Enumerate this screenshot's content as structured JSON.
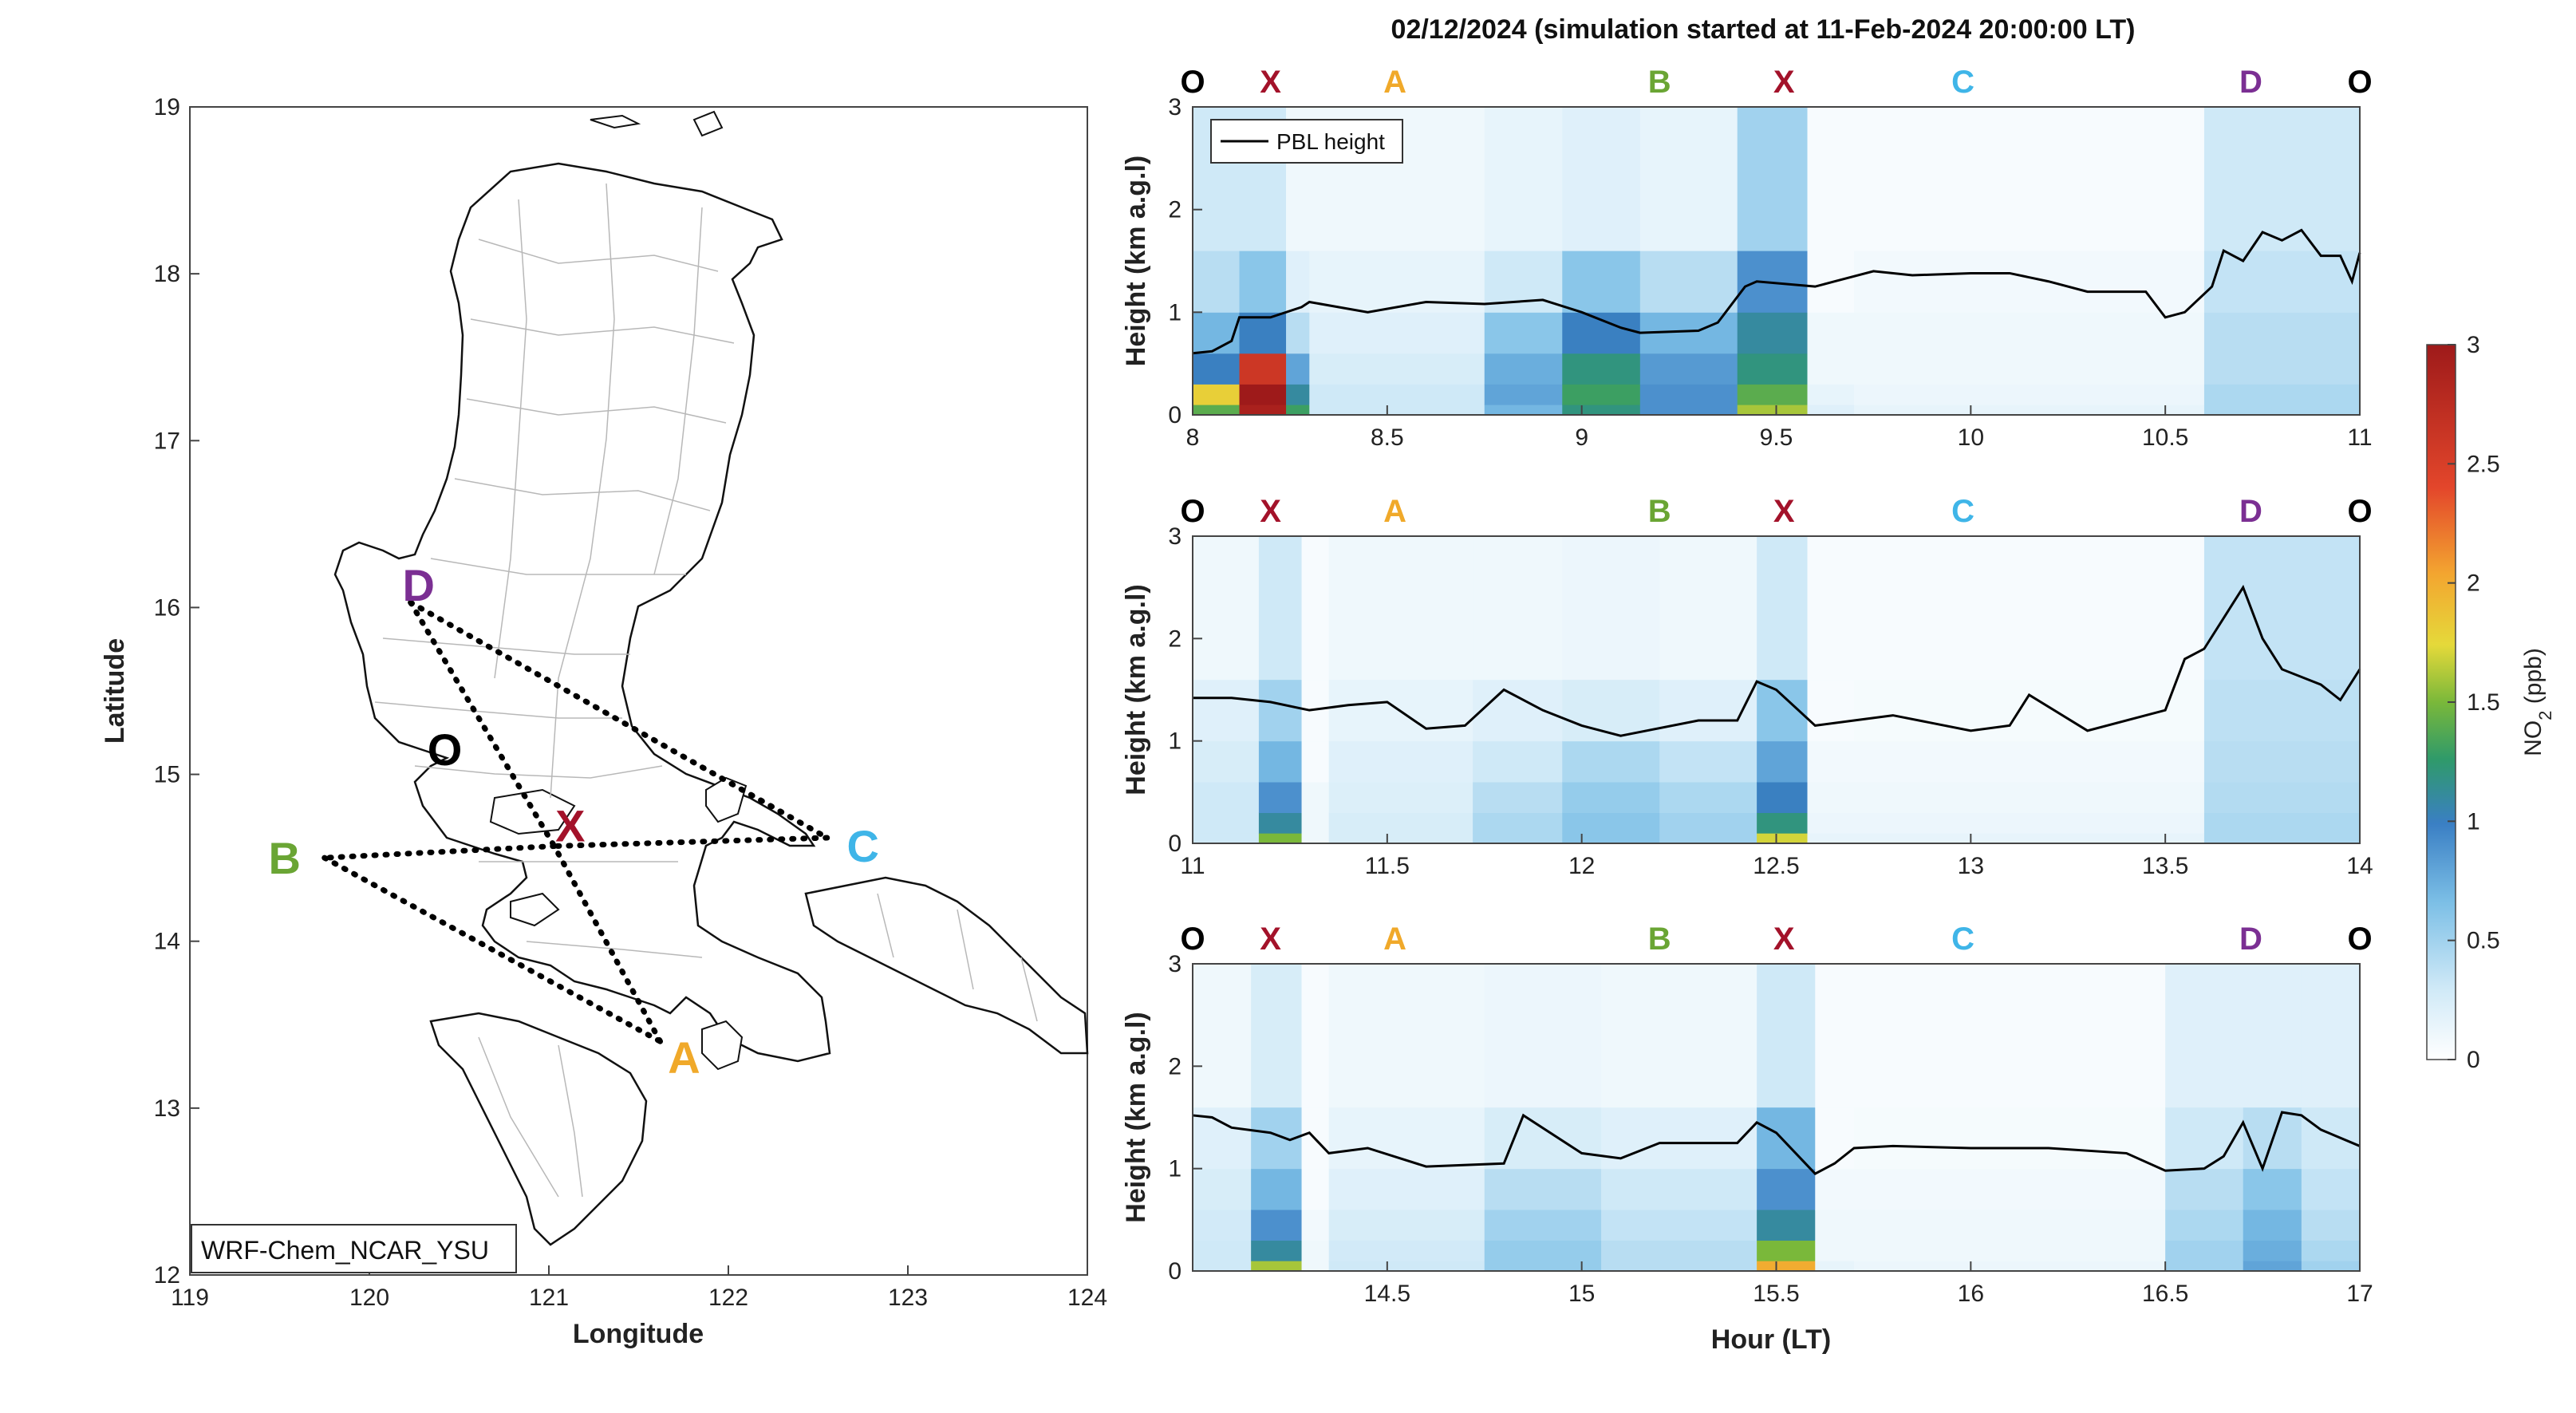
{
  "figure_title": "02/12/2024 (simulation started at 11-Feb-2024 20:00:00 LT)",
  "colors": {
    "O": "#000000",
    "X": "#a3122a",
    "A": "#f0a92a",
    "B": "#6aa534",
    "C": "#3fb5e8",
    "D": "#7b2f93"
  },
  "chart_data": [
    {
      "type": "map",
      "panel": "map",
      "xlabel": "Longitude",
      "ylabel": "Latitude",
      "xlim": [
        119,
        124
      ],
      "ylim": [
        12,
        19
      ],
      "xticks": [
        119,
        120,
        121,
        122,
        123,
        124
      ],
      "yticks": [
        12,
        13,
        14,
        15,
        16,
        17,
        18,
        19
      ],
      "model_label": "WRF-Chem_NCAR_YSU",
      "points": [
        {
          "name": "O",
          "lon": 120.42,
          "lat": 15.15
        },
        {
          "name": "X",
          "lon": 121.03,
          "lat": 14.57
        },
        {
          "name": "A",
          "lon": 121.62,
          "lat": 13.4
        },
        {
          "name": "B",
          "lon": 119.75,
          "lat": 14.5
        },
        {
          "name": "C",
          "lon": 122.55,
          "lat": 14.62
        },
        {
          "name": "D",
          "lon": 120.23,
          "lat": 16.03
        }
      ],
      "route_segments": [
        [
          "D",
          "X"
        ],
        [
          "D",
          "C"
        ],
        [
          "C",
          "X"
        ],
        [
          "X",
          "B"
        ],
        [
          "B",
          "A"
        ],
        [
          "A",
          "X"
        ]
      ]
    },
    {
      "type": "heatmap",
      "panel": "curtain-1",
      "xlim": [
        8,
        11
      ],
      "xticks": [
        "8",
        "8.5",
        "9",
        "9.5",
        "10",
        "10.5",
        "11"
      ],
      "ylim": [
        0,
        3
      ],
      "yticks": [
        "0",
        "1",
        "2",
        "3"
      ],
      "ylabel": "Height (km a.g.l)",
      "legend": "PBL height",
      "route_labels": [
        {
          "label": "O",
          "x": 8.0
        },
        {
          "label": "X",
          "x": 8.2
        },
        {
          "label": "A",
          "x": 8.52
        },
        {
          "label": "B",
          "x": 9.2
        },
        {
          "label": "X",
          "x": 9.52
        },
        {
          "label": "C",
          "x": 9.98
        },
        {
          "label": "D",
          "x": 10.72
        },
        {
          "label": "O",
          "x": 11.0
        }
      ],
      "pbl_height": {
        "x": [
          8.0,
          8.05,
          8.1,
          8.12,
          8.2,
          8.28,
          8.3,
          8.45,
          8.6,
          8.75,
          8.9,
          9.0,
          9.1,
          9.15,
          9.3,
          9.35,
          9.42,
          9.45,
          9.6,
          9.65,
          9.75,
          9.85,
          10.0,
          10.1,
          10.2,
          10.3,
          10.45,
          10.5,
          10.55,
          10.62,
          10.65,
          10.7,
          10.75,
          10.8,
          10.85,
          10.9,
          10.95,
          10.98,
          11.0
        ],
        "y": [
          0.6,
          0.62,
          0.72,
          0.95,
          0.95,
          1.05,
          1.1,
          1.0,
          1.1,
          1.08,
          1.12,
          1.0,
          0.85,
          0.8,
          0.82,
          0.9,
          1.25,
          1.3,
          1.25,
          1.3,
          1.4,
          1.36,
          1.38,
          1.38,
          1.3,
          1.2,
          1.2,
          0.95,
          1.0,
          1.25,
          1.6,
          1.5,
          1.78,
          1.7,
          1.8,
          1.55,
          1.55,
          1.3,
          1.58
        ]
      },
      "no2_cells": [
        {
          "x": [
            8.0,
            8.12
          ],
          "z": [
            1.4,
            1.8,
            1.0,
            0.7,
            0.4,
            0.3
          ]
        },
        {
          "x": [
            8.12,
            8.24
          ],
          "z": [
            2.9,
            3.0,
            2.6,
            1.0,
            0.6,
            0.3
          ]
        },
        {
          "x": [
            8.24,
            8.3
          ],
          "z": [
            1.3,
            1.1,
            0.8,
            0.4,
            0.2,
            0.1
          ]
        },
        {
          "x": [
            8.3,
            8.75
          ],
          "z": [
            0.3,
            0.3,
            0.25,
            0.2,
            0.15,
            0.1
          ]
        },
        {
          "x": [
            8.75,
            8.95
          ],
          "z": [
            0.7,
            0.8,
            0.75,
            0.6,
            0.3,
            0.15
          ]
        },
        {
          "x": [
            8.95,
            9.15
          ],
          "z": [
            1.2,
            1.3,
            1.2,
            1.0,
            0.6,
            0.2
          ]
        },
        {
          "x": [
            9.15,
            9.4
          ],
          "z": [
            0.9,
            0.9,
            0.85,
            0.7,
            0.4,
            0.15
          ]
        },
        {
          "x": [
            9.4,
            9.58
          ],
          "z": [
            1.6,
            1.4,
            1.2,
            1.1,
            0.9,
            0.5
          ]
        },
        {
          "x": [
            9.58,
            9.7
          ],
          "z": [
            0.2,
            0.15,
            0.1,
            0.1,
            0.05,
            0.05
          ]
        },
        {
          "x": [
            9.7,
            10.6
          ],
          "z": [
            0.15,
            0.12,
            0.1,
            0.1,
            0.08,
            0.05
          ]
        },
        {
          "x": [
            10.6,
            11.0
          ],
          "z": [
            0.45,
            0.45,
            0.4,
            0.4,
            0.35,
            0.3
          ]
        }
      ]
    },
    {
      "type": "heatmap",
      "panel": "curtain-2",
      "xlim": [
        11,
        14
      ],
      "xticks": [
        "11",
        "11.5",
        "12",
        "12.5",
        "13",
        "13.5",
        "14"
      ],
      "ylim": [
        0,
        3
      ],
      "yticks": [
        "0",
        "1",
        "2",
        "3"
      ],
      "ylabel": "Height (km a.g.l)",
      "route_labels": [
        {
          "label": "O",
          "x": 11.0
        },
        {
          "label": "X",
          "x": 11.2
        },
        {
          "label": "A",
          "x": 11.52
        },
        {
          "label": "B",
          "x": 12.2
        },
        {
          "label": "X",
          "x": 12.52
        },
        {
          "label": "C",
          "x": 12.98
        },
        {
          "label": "D",
          "x": 13.72
        },
        {
          "label": "O",
          "x": 14.0
        }
      ],
      "pbl_height": {
        "x": [
          11.0,
          11.1,
          11.2,
          11.3,
          11.4,
          11.5,
          11.6,
          11.7,
          11.8,
          11.9,
          12.0,
          12.1,
          12.3,
          12.4,
          12.45,
          12.5,
          12.6,
          12.7,
          12.8,
          13.0,
          13.1,
          13.15,
          13.3,
          13.5,
          13.55,
          13.6,
          13.65,
          13.7,
          13.75,
          13.8,
          13.9,
          13.95,
          14.0
        ],
        "y": [
          1.42,
          1.42,
          1.38,
          1.3,
          1.35,
          1.38,
          1.12,
          1.15,
          1.5,
          1.3,
          1.15,
          1.05,
          1.2,
          1.2,
          1.58,
          1.5,
          1.15,
          1.2,
          1.25,
          1.1,
          1.15,
          1.45,
          1.1,
          1.3,
          1.8,
          1.9,
          2.2,
          2.5,
          2.0,
          1.7,
          1.55,
          1.4,
          1.7
        ]
      },
      "no2_cells": [
        {
          "x": [
            11.0,
            11.17
          ],
          "z": [
            0.3,
            0.3,
            0.3,
            0.25,
            0.2,
            0.1
          ]
        },
        {
          "x": [
            11.17,
            11.28
          ],
          "z": [
            1.5,
            1.1,
            0.9,
            0.7,
            0.5,
            0.3
          ]
        },
        {
          "x": [
            11.28,
            11.35
          ],
          "z": [
            0.1,
            0.1,
            0.1,
            0.05,
            0.05,
            0.05
          ]
        },
        {
          "x": [
            11.35,
            11.72
          ],
          "z": [
            0.25,
            0.25,
            0.22,
            0.2,
            0.15,
            0.1
          ]
        },
        {
          "x": [
            11.72,
            11.95
          ],
          "z": [
            0.45,
            0.45,
            0.4,
            0.3,
            0.2,
            0.1
          ]
        },
        {
          "x": [
            11.95,
            12.2
          ],
          "z": [
            0.6,
            0.6,
            0.55,
            0.45,
            0.25,
            0.12
          ]
        },
        {
          "x": [
            12.2,
            12.45
          ],
          "z": [
            0.5,
            0.5,
            0.45,
            0.35,
            0.2,
            0.1
          ]
        },
        {
          "x": [
            12.45,
            12.58
          ],
          "z": [
            1.7,
            1.2,
            1.0,
            0.8,
            0.6,
            0.3
          ]
        },
        {
          "x": [
            12.58,
            12.7
          ],
          "z": [
            0.15,
            0.12,
            0.1,
            0.08,
            0.05,
            0.05
          ]
        },
        {
          "x": [
            12.7,
            13.6
          ],
          "z": [
            0.15,
            0.12,
            0.1,
            0.08,
            0.06,
            0.05
          ]
        },
        {
          "x": [
            13.6,
            14.0
          ],
          "z": [
            0.45,
            0.45,
            0.42,
            0.4,
            0.38,
            0.35
          ]
        }
      ]
    },
    {
      "type": "heatmap",
      "panel": "curtain-3",
      "xlim": [
        14,
        17
      ],
      "xticks": [
        "14.5",
        "15",
        "15.5",
        "16",
        "16.5",
        "17"
      ],
      "ylim": [
        0,
        3
      ],
      "yticks": [
        "0",
        "1",
        "2",
        "3"
      ],
      "ylabel": "Height (km a.g.l)",
      "xlabel": "Hour (LT)",
      "route_labels": [
        {
          "label": "O",
          "x": 14.0
        },
        {
          "label": "X",
          "x": 14.2
        },
        {
          "label": "A",
          "x": 14.52
        },
        {
          "label": "B",
          "x": 15.2
        },
        {
          "label": "X",
          "x": 15.52
        },
        {
          "label": "C",
          "x": 15.98
        },
        {
          "label": "D",
          "x": 16.72
        },
        {
          "label": "O",
          "x": 17.0
        }
      ],
      "pbl_height": {
        "x": [
          14.0,
          14.05,
          14.1,
          14.2,
          14.25,
          14.3,
          14.35,
          14.45,
          14.6,
          14.8,
          14.85,
          15.0,
          15.1,
          15.2,
          15.3,
          15.4,
          15.45,
          15.5,
          15.6,
          15.65,
          15.7,
          15.8,
          16.0,
          16.2,
          16.4,
          16.5,
          16.6,
          16.65,
          16.7,
          16.75,
          16.8,
          16.85,
          16.9,
          17.0
        ],
        "y": [
          1.52,
          1.5,
          1.4,
          1.35,
          1.28,
          1.35,
          1.15,
          1.2,
          1.02,
          1.05,
          1.52,
          1.15,
          1.1,
          1.25,
          1.25,
          1.25,
          1.45,
          1.35,
          0.95,
          1.05,
          1.2,
          1.22,
          1.2,
          1.2,
          1.15,
          0.98,
          1.0,
          1.12,
          1.45,
          1.0,
          1.55,
          1.52,
          1.38,
          1.22
        ]
      },
      "no2_cells": [
        {
          "x": [
            14.0,
            14.15
          ],
          "z": [
            0.3,
            0.3,
            0.28,
            0.25,
            0.2,
            0.1
          ]
        },
        {
          "x": [
            14.15,
            14.28
          ],
          "z": [
            1.6,
            1.1,
            0.9,
            0.7,
            0.5,
            0.25
          ]
        },
        {
          "x": [
            14.28,
            14.35
          ],
          "z": [
            0.1,
            0.1,
            0.08,
            0.05,
            0.05,
            0.05
          ]
        },
        {
          "x": [
            14.35,
            14.75
          ],
          "z": [
            0.3,
            0.28,
            0.25,
            0.2,
            0.15,
            0.1
          ]
        },
        {
          "x": [
            14.75,
            15.05
          ],
          "z": [
            0.55,
            0.55,
            0.5,
            0.4,
            0.25,
            0.12
          ]
        },
        {
          "x": [
            15.05,
            15.45
          ],
          "z": [
            0.4,
            0.4,
            0.35,
            0.3,
            0.2,
            0.1
          ]
        },
        {
          "x": [
            15.45,
            15.6
          ],
          "z": [
            2.0,
            1.5,
            1.1,
            0.9,
            0.7,
            0.3
          ]
        },
        {
          "x": [
            15.6,
            15.7
          ],
          "z": [
            0.15,
            0.1,
            0.1,
            0.08,
            0.05,
            0.05
          ]
        },
        {
          "x": [
            15.7,
            16.5
          ],
          "z": [
            0.12,
            0.1,
            0.1,
            0.08,
            0.06,
            0.05
          ]
        },
        {
          "x": [
            16.5,
            16.7
          ],
          "z": [
            0.5,
            0.5,
            0.45,
            0.4,
            0.3,
            0.2
          ]
        },
        {
          "x": [
            16.7,
            16.85
          ],
          "z": [
            0.8,
            0.75,
            0.7,
            0.6,
            0.4,
            0.2
          ]
        },
        {
          "x": [
            16.85,
            17.0
          ],
          "z": [
            0.5,
            0.45,
            0.4,
            0.35,
            0.3,
            0.2
          ]
        }
      ]
    }
  ],
  "colorbar": {
    "label": "NO",
    "label_sub": "2",
    "label_unit": " (ppb)",
    "range": [
      0,
      3
    ],
    "ticks": [
      "0",
      "0.5",
      "1",
      "1.5",
      "2",
      "2.5",
      "3"
    ]
  }
}
